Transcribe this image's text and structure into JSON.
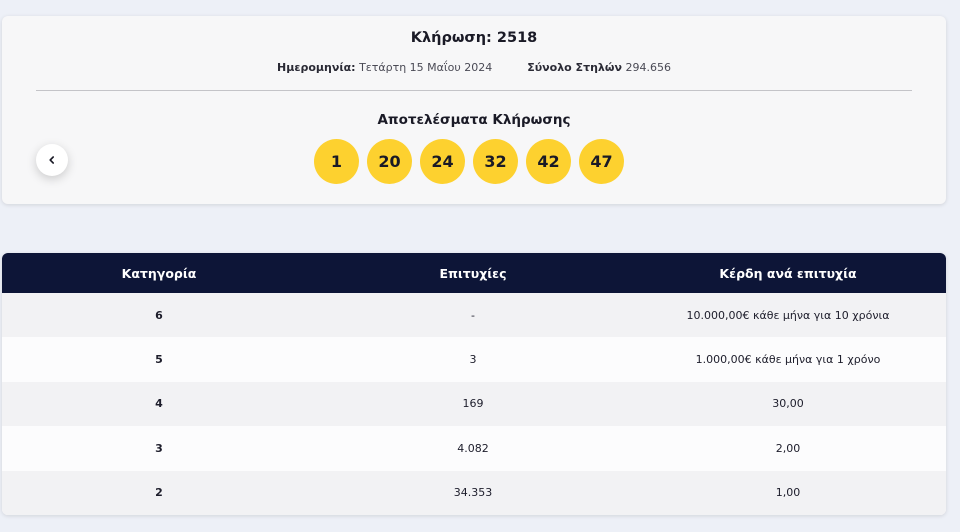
{
  "draw": {
    "title": "Κλήρωση: 2518",
    "date_label": "Ημερομηνία:",
    "date_value": "Τετάρτη 15 Μαΐου 2024",
    "columns_label": "Σύνολο Στηλών",
    "columns_value": "294.656",
    "results_title": "Αποτελέσματα Κλήρωσης",
    "numbers": [
      "1",
      "20",
      "24",
      "32",
      "42",
      "47"
    ],
    "ball_color": "#fdd12f",
    "prev_icon": "chevron-left-icon"
  },
  "table": {
    "header_color": "#0d1537",
    "headers": [
      "Κατηγορία",
      "Επιτυχίες",
      "Κέρδη ανά επιτυχία"
    ],
    "rows": [
      {
        "category": "6",
        "winners": "-",
        "prize": "10.000,00€ κάθε μήνα για 10 χρόνια"
      },
      {
        "category": "5",
        "winners": "3",
        "prize": "1.000,00€ κάθε μήνα για 1 χρόνο"
      },
      {
        "category": "4",
        "winners": "169",
        "prize": "30,00"
      },
      {
        "category": "3",
        "winners": "4.082",
        "prize": "2,00"
      },
      {
        "category": "2",
        "winners": "34.353",
        "prize": "1,00"
      }
    ]
  }
}
